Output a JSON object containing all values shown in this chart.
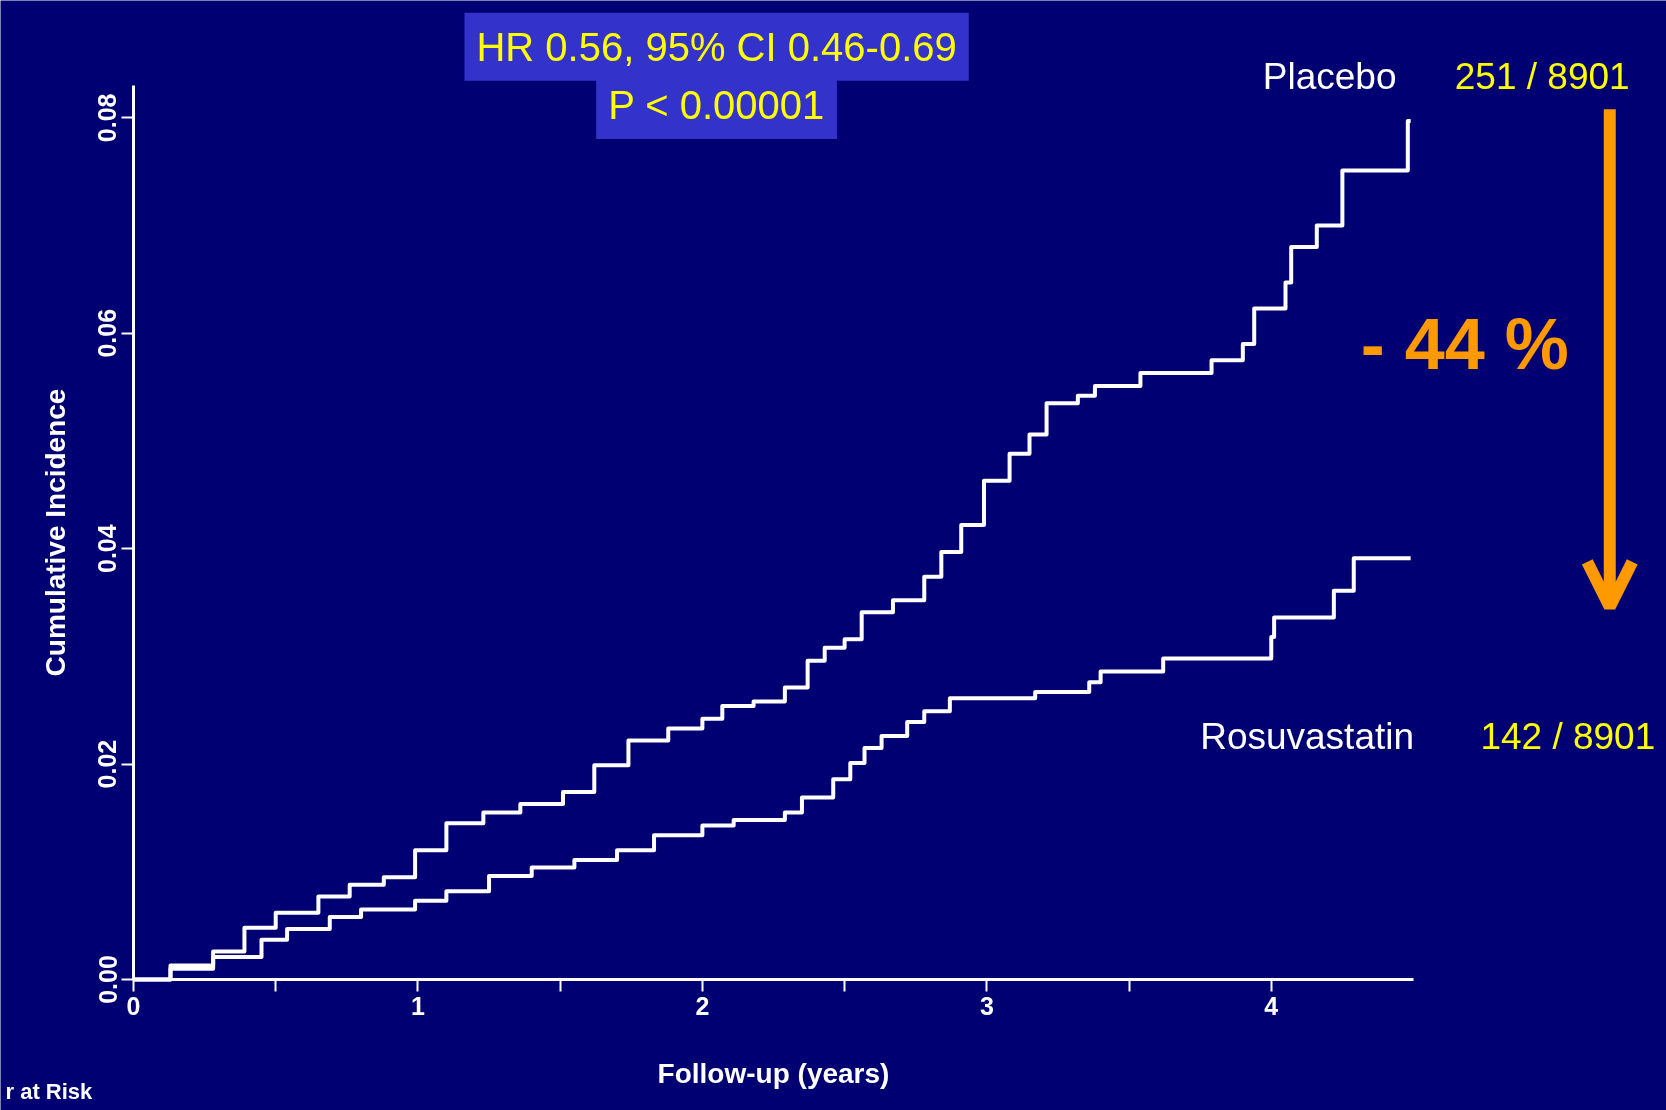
{
  "chart_data": {
    "type": "step",
    "xlabel": "Follow-up (years)",
    "ylabel": "Cumulative Incidence",
    "xlim": [
      0,
      4.5
    ],
    "ylim": [
      0,
      0.083
    ],
    "xticks": [
      0,
      {
        "value": 0.5,
        "label": null
      },
      1,
      {
        "value": 1.5,
        "label": null
      },
      2,
      {
        "value": 2.5,
        "label": null
      },
      3,
      {
        "value": 3.5,
        "label": null
      },
      4
    ],
    "yticks": [
      {
        "value": 0,
        "label": "0.00"
      },
      {
        "value": 0.02,
        "label": "0.02"
      },
      {
        "value": 0.04,
        "label": "0.04"
      },
      {
        "value": 0.06,
        "label": "0.06"
      },
      {
        "value": 0.08,
        "label": "0.08"
      }
    ],
    "grid": false,
    "line_style": "solid",
    "marker": "none",
    "series": [
      {
        "name": "Placebo",
        "color": "#ffffff",
        "x": [
          0,
          0.13,
          0.28,
          0.39,
          0.5,
          0.65,
          0.76,
          0.88,
          0.99,
          1.1,
          1.23,
          1.36,
          1.51,
          1.62,
          1.74,
          1.88,
          2.0,
          2.07,
          2.18,
          2.29,
          2.37,
          2.43,
          2.5,
          2.56,
          2.67,
          2.78,
          2.84,
          2.91,
          2.99,
          3.08,
          3.15,
          3.21,
          3.32,
          3.38,
          3.54,
          3.79,
          3.9,
          3.94,
          4.05,
          4.07,
          4.16,
          4.25,
          4.48,
          4.49
        ],
        "values": [
          0,
          0.001,
          0.0026,
          0.0048,
          0.0062,
          0.0077,
          0.0088,
          0.0095,
          0.012,
          0.0145,
          0.0155,
          0.0163,
          0.0174,
          0.0199,
          0.0222,
          0.0233,
          0.0242,
          0.0254,
          0.0258,
          0.0271,
          0.0296,
          0.0308,
          0.0316,
          0.0341,
          0.0352,
          0.0374,
          0.0397,
          0.0422,
          0.0463,
          0.0488,
          0.0506,
          0.0535,
          0.0542,
          0.0551,
          0.0563,
          0.0575,
          0.059,
          0.0623,
          0.0647,
          0.068,
          0.07,
          0.0751,
          0.0797,
          0.0797
        ]
      },
      {
        "name": "Rosuvastatin",
        "color": "#ffffff",
        "x": [
          0,
          0.13,
          0.28,
          0.45,
          0.54,
          0.69,
          0.8,
          0.99,
          1.1,
          1.25,
          1.4,
          1.55,
          1.7,
          1.83,
          2.0,
          2.11,
          2.29,
          2.35,
          2.46,
          2.52,
          2.57,
          2.63,
          2.72,
          2.78,
          2.87,
          3.17,
          3.36,
          3.4,
          3.62,
          4.0,
          4.01,
          4.22,
          4.29,
          4.49
        ],
        "values": [
          0,
          0.0013,
          0.0021,
          0.0037,
          0.0047,
          0.0058,
          0.0065,
          0.0073,
          0.0082,
          0.0096,
          0.0104,
          0.0111,
          0.012,
          0.0134,
          0.0143,
          0.0148,
          0.0155,
          0.0169,
          0.0186,
          0.0201,
          0.0215,
          0.0226,
          0.0239,
          0.0249,
          0.0261,
          0.0267,
          0.0276,
          0.0286,
          0.0298,
          0.0318,
          0.0336,
          0.0361,
          0.0391,
          0.0391
        ]
      }
    ],
    "annotations": [
      "HR 0.56, 95% CI 0.46-0.69",
      "P < 0.00001",
      "251 / 8901",
      "142 / 8901",
      "- 44 %",
      "r at Risk"
    ]
  }
}
